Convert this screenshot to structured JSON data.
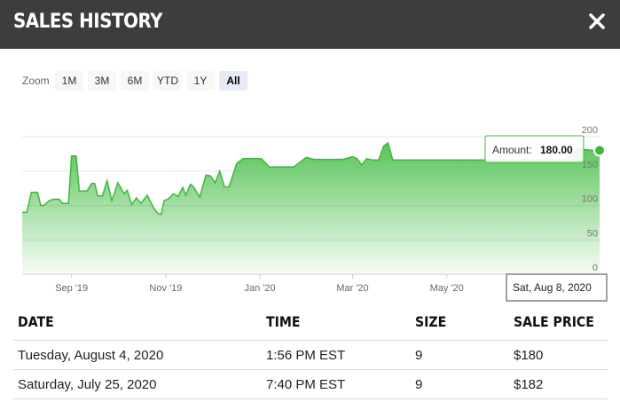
{
  "header": {
    "title": "SALES HISTORY",
    "close_icon": "close-icon"
  },
  "zoom": {
    "label": "Zoom",
    "options": [
      "1M",
      "3M",
      "6M",
      "YTD",
      "1Y",
      "All"
    ],
    "active": "All"
  },
  "tooltip": {
    "label": "Amount:",
    "value": "180.00",
    "date": "Sat, Aug 8, 2020"
  },
  "colors": {
    "header_bg": "#3d3d3d",
    "series": "#3cb93c",
    "zoom_active": "#e6ebf5"
  },
  "chart_data": {
    "type": "area",
    "x_ticks": [
      "Sep '19",
      "Nov '19",
      "Jan '20",
      "Mar '20",
      "May '20"
    ],
    "y_ticks": [
      "0",
      "50",
      "100",
      "150",
      "200"
    ],
    "ylim": [
      0,
      200
    ],
    "xlim": [
      "2019-07-31",
      "2020-08-08"
    ],
    "points": [
      [
        "2019-07-31",
        90
      ],
      [
        "2019-08-03",
        90
      ],
      [
        "2019-08-06",
        119
      ],
      [
        "2019-08-10",
        119
      ],
      [
        "2019-08-12",
        100
      ],
      [
        "2019-08-14",
        100
      ],
      [
        "2019-08-17",
        106
      ],
      [
        "2019-08-20",
        109
      ],
      [
        "2019-08-24",
        109
      ],
      [
        "2019-08-26",
        103
      ],
      [
        "2019-08-30",
        103
      ],
      [
        "2019-09-01",
        172
      ],
      [
        "2019-09-04",
        172
      ],
      [
        "2019-09-06",
        121
      ],
      [
        "2019-09-11",
        121
      ],
      [
        "2019-09-14",
        132
      ],
      [
        "2019-09-16",
        132
      ],
      [
        "2019-09-18",
        114
      ],
      [
        "2019-09-21",
        114
      ],
      [
        "2019-09-24",
        136
      ],
      [
        "2019-09-27",
        107
      ],
      [
        "2019-10-01",
        133
      ],
      [
        "2019-10-05",
        117
      ],
      [
        "2019-10-07",
        122
      ],
      [
        "2019-10-10",
        101
      ],
      [
        "2019-10-13",
        111
      ],
      [
        "2019-10-16",
        103
      ],
      [
        "2019-10-20",
        115
      ],
      [
        "2019-10-24",
        97
      ],
      [
        "2019-10-27",
        88
      ],
      [
        "2019-10-29",
        87
      ],
      [
        "2019-10-31",
        107
      ],
      [
        "2019-11-03",
        110
      ],
      [
        "2019-11-06",
        117
      ],
      [
        "2019-11-09",
        113
      ],
      [
        "2019-11-12",
        126
      ],
      [
        "2019-11-14",
        115
      ],
      [
        "2019-11-17",
        131
      ],
      [
        "2019-11-19",
        127
      ],
      [
        "2019-11-23",
        112
      ],
      [
        "2019-11-27",
        144
      ],
      [
        "2019-11-30",
        143
      ],
      [
        "2019-12-03",
        133
      ],
      [
        "2019-12-06",
        150
      ],
      [
        "2019-12-09",
        127
      ],
      [
        "2019-12-12",
        127
      ],
      [
        "2019-12-17",
        161
      ],
      [
        "2019-12-21",
        168
      ],
      [
        "2019-12-26",
        168
      ],
      [
        "2020-01-02",
        168
      ],
      [
        "2020-01-07",
        156
      ],
      [
        "2020-01-15",
        156
      ],
      [
        "2020-01-23",
        156
      ],
      [
        "2020-01-31",
        170
      ],
      [
        "2020-02-05",
        167
      ],
      [
        "2020-02-15",
        167
      ],
      [
        "2020-02-24",
        167
      ],
      [
        "2020-03-01",
        171
      ],
      [
        "2020-03-04",
        168
      ],
      [
        "2020-03-07",
        159
      ],
      [
        "2020-03-10",
        168
      ],
      [
        "2020-03-14",
        166
      ],
      [
        "2020-03-18",
        166
      ],
      [
        "2020-03-21",
        186
      ],
      [
        "2020-03-24",
        191
      ],
      [
        "2020-03-27",
        166
      ],
      [
        "2020-04-03",
        166
      ],
      [
        "2020-04-12",
        166
      ],
      [
        "2020-04-20",
        166
      ],
      [
        "2020-04-28",
        166
      ],
      [
        "2020-05-06",
        166
      ],
      [
        "2020-05-14",
        166
      ],
      [
        "2020-05-22",
        166
      ],
      [
        "2020-05-30",
        166
      ],
      [
        "2020-06-07",
        166
      ],
      [
        "2020-06-15",
        166
      ],
      [
        "2020-06-23",
        166
      ],
      [
        "2020-07-01",
        166
      ],
      [
        "2020-07-09",
        166
      ],
      [
        "2020-07-17",
        166
      ],
      [
        "2020-07-25",
        182
      ],
      [
        "2020-08-04",
        180
      ],
      [
        "2020-08-08",
        180
      ]
    ]
  },
  "table": {
    "headers": [
      "DATE",
      "TIME",
      "SIZE",
      "SALE PRICE"
    ],
    "rows": [
      [
        "Tuesday, August 4, 2020",
        "1:56 PM EST",
        "9",
        "$180"
      ],
      [
        "Saturday, July 25, 2020",
        "7:40 PM EST",
        "9",
        "$182"
      ]
    ]
  }
}
